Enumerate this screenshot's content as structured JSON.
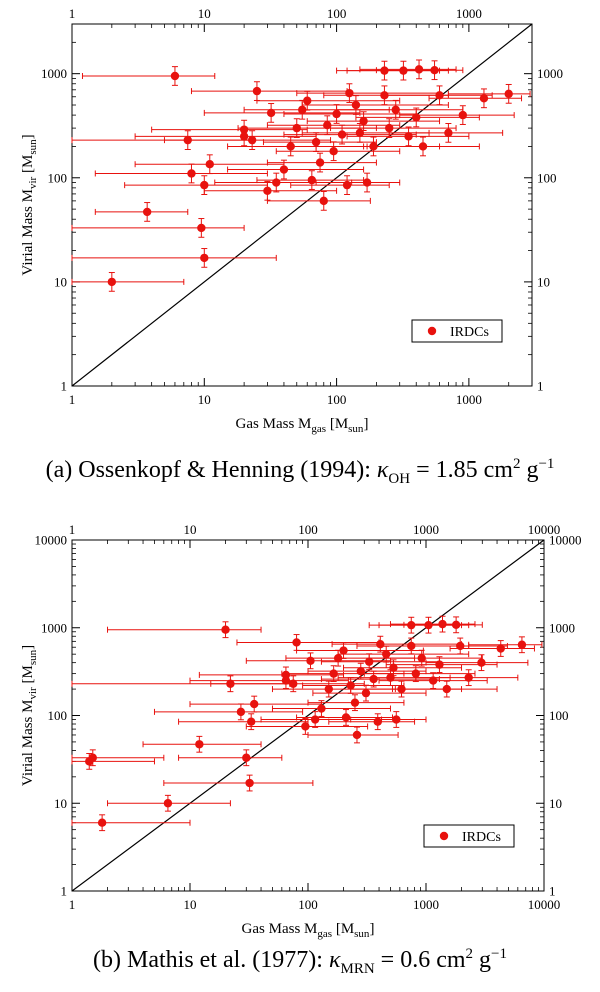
{
  "chart_data": [
    {
      "type": "scatter",
      "xscale": "log",
      "yscale": "log",
      "xlim": [
        1,
        3000
      ],
      "ylim": [
        1,
        3000
      ],
      "x_ticks": [
        "1",
        "10",
        "100",
        "1000"
      ],
      "y_ticks": [
        "1",
        "10",
        "100",
        "1000"
      ],
      "xlabel": "Gas Mass M",
      "xlabel_sub": "gas",
      "xlabel_unit": "sun",
      "ylabel": "Virial Mass M",
      "ylabel_sub": "vir",
      "ylabel_unit": "sun",
      "legend": "IRDCs",
      "legend_position": "bottom-right",
      "marker_color": "#e8120e",
      "reference_line": "y = x",
      "caption": {
        "prefix": "(a)",
        "text": "Ossenkopf & Henning (1994): ",
        "kappa": "κ",
        "kappa_sub": "OH",
        "value": " = 1.85 cm",
        "sup1": "2",
        "unit": " g",
        "sup2": "−1"
      },
      "points": [
        {
          "x": 2.0,
          "y": 10,
          "xlo": 1.0,
          "xhi": 7
        },
        {
          "x": 3.7,
          "y": 47,
          "xlo": 1.5,
          "xhi": 7.5
        },
        {
          "x": 9.5,
          "y": 33,
          "xlo": 1.0,
          "xhi": 20
        },
        {
          "x": 10,
          "y": 17,
          "xlo": 1.0,
          "xhi": 35
        },
        {
          "x": 6,
          "y": 950,
          "xlo": 1.2,
          "xhi": 12
        },
        {
          "x": 7.5,
          "y": 230,
          "xlo": 1.0,
          "xhi": 22
        },
        {
          "x": 8,
          "y": 110,
          "xlo": 1.5,
          "xhi": 30
        },
        {
          "x": 10,
          "y": 85,
          "xlo": 2.5,
          "xhi": 30
        },
        {
          "x": 11,
          "y": 135,
          "xlo": 3.0,
          "xhi": 40
        },
        {
          "x": 20,
          "y": 290,
          "xlo": 4.0,
          "xhi": 60
        },
        {
          "x": 20,
          "y": 250,
          "xlo": 3.0,
          "xhi": 70
        },
        {
          "x": 23,
          "y": 230,
          "xlo": 5,
          "xhi": 90
        },
        {
          "x": 25,
          "y": 680,
          "xlo": 8,
          "xhi": 120
        },
        {
          "x": 30,
          "y": 75,
          "xlo": 10,
          "xhi": 100
        },
        {
          "x": 32,
          "y": 420,
          "xlo": 10,
          "xhi": 150
        },
        {
          "x": 35,
          "y": 90,
          "xlo": 12,
          "xhi": 130
        },
        {
          "x": 40,
          "y": 120,
          "xlo": 15,
          "xhi": 160
        },
        {
          "x": 45,
          "y": 200,
          "xlo": 15,
          "xhi": 170
        },
        {
          "x": 50,
          "y": 300,
          "xlo": 18,
          "xhi": 200
        },
        {
          "x": 55,
          "y": 450,
          "xlo": 20,
          "xhi": 250
        },
        {
          "x": 60,
          "y": 550,
          "xlo": 25,
          "xhi": 300
        },
        {
          "x": 65,
          "y": 95,
          "xlo": 25,
          "xhi": 160
        },
        {
          "x": 70,
          "y": 220,
          "xlo": 28,
          "xhi": 200
        },
        {
          "x": 75,
          "y": 140,
          "xlo": 30,
          "xhi": 200
        },
        {
          "x": 80,
          "y": 60,
          "xlo": 30,
          "xhi": 180
        },
        {
          "x": 85,
          "y": 320,
          "xlo": 30,
          "xhi": 300
        },
        {
          "x": 95,
          "y": 180,
          "xlo": 35,
          "xhi": 300
        },
        {
          "x": 100,
          "y": 410,
          "xlo": 40,
          "xhi": 400
        },
        {
          "x": 110,
          "y": 260,
          "xlo": 40,
          "xhi": 400
        },
        {
          "x": 120,
          "y": 85,
          "xlo": 45,
          "xhi": 250
        },
        {
          "x": 125,
          "y": 650,
          "xlo": 50,
          "xhi": 600
        },
        {
          "x": 140,
          "y": 500,
          "xlo": 55,
          "xhi": 700
        },
        {
          "x": 150,
          "y": 270,
          "xlo": 55,
          "xhi": 500
        },
        {
          "x": 160,
          "y": 350,
          "xlo": 60,
          "xhi": 600
        },
        {
          "x": 170,
          "y": 90,
          "xlo": 70,
          "xhi": 300
        },
        {
          "x": 190,
          "y": 200,
          "xlo": 70,
          "xhi": 600
        },
        {
          "x": 230,
          "y": 1070,
          "xlo": 100,
          "xhi": 600
        },
        {
          "x": 230,
          "y": 620,
          "xlo": 80,
          "xhi": 700
        },
        {
          "x": 250,
          "y": 300,
          "xlo": 90,
          "xhi": 800
        },
        {
          "x": 280,
          "y": 450,
          "xlo": 100,
          "xhi": 900
        },
        {
          "x": 320,
          "y": 1070,
          "xlo": 120,
          "xhi": 700
        },
        {
          "x": 350,
          "y": 250,
          "xlo": 120,
          "xhi": 1000
        },
        {
          "x": 400,
          "y": 380,
          "xlo": 140,
          "xhi": 1200
        },
        {
          "x": 420,
          "y": 1100,
          "xlo": 150,
          "xhi": 800
        },
        {
          "x": 450,
          "y": 200,
          "xlo": 160,
          "xhi": 1200
        },
        {
          "x": 550,
          "y": 1080,
          "xlo": 200,
          "xhi": 900
        },
        {
          "x": 600,
          "y": 620,
          "xlo": 220,
          "xhi": 1500
        },
        {
          "x": 700,
          "y": 270,
          "xlo": 250,
          "xhi": 1800
        },
        {
          "x": 900,
          "y": 400,
          "xlo": 300,
          "xhi": 2200
        },
        {
          "x": 1300,
          "y": 580,
          "xlo": 500,
          "xhi": 2500
        },
        {
          "x": 2000,
          "y": 640,
          "xlo": 700,
          "xhi": 2900
        }
      ]
    },
    {
      "type": "scatter",
      "xscale": "log",
      "yscale": "log",
      "xlim": [
        1,
        10000
      ],
      "ylim": [
        1,
        10000
      ],
      "x_ticks": [
        "1",
        "10",
        "100",
        "1000",
        "10000"
      ],
      "y_ticks": [
        "1",
        "10",
        "100",
        "1000",
        "10000"
      ],
      "xlabel": "Gas Mass M",
      "xlabel_sub": "gas",
      "xlabel_unit": "sun",
      "ylabel": "Virial Mass M",
      "ylabel_sub": "vir",
      "ylabel_unit": "sun",
      "legend": "IRDCs",
      "legend_position": "bottom-right",
      "marker_color": "#e8120e",
      "reference_line": "y = x",
      "caption": {
        "prefix": "(b)",
        "text": "Mathis et al. (1977): ",
        "kappa": "κ",
        "kappa_sub": "MRN",
        "value": " = 0.6 cm",
        "sup1": "2",
        "unit": " g",
        "sup2": "−1"
      },
      "points": [
        {
          "x": 1.8,
          "y": 6,
          "xlo": 1.0,
          "xhi": 10
        },
        {
          "x": 6.5,
          "y": 10,
          "xlo": 2,
          "xhi": 22
        },
        {
          "x": 1.5,
          "y": 33,
          "xlo": 1.0,
          "xhi": 6
        },
        {
          "x": 1.4,
          "y": 30,
          "xlo": 1.0,
          "xhi": 5
        },
        {
          "x": 12,
          "y": 47,
          "xlo": 4,
          "xhi": 40
        },
        {
          "x": 30,
          "y": 33,
          "xlo": 8,
          "xhi": 60
        },
        {
          "x": 32,
          "y": 17,
          "xlo": 6,
          "xhi": 110
        },
        {
          "x": 20,
          "y": 950,
          "xlo": 2,
          "xhi": 40
        },
        {
          "x": 22,
          "y": 230,
          "xlo": 1.0,
          "xhi": 70
        },
        {
          "x": 27,
          "y": 110,
          "xlo": 5,
          "xhi": 90
        },
        {
          "x": 33,
          "y": 85,
          "xlo": 8,
          "xhi": 100
        },
        {
          "x": 35,
          "y": 135,
          "xlo": 10,
          "xhi": 130
        },
        {
          "x": 65,
          "y": 290,
          "xlo": 12,
          "xhi": 200
        },
        {
          "x": 65,
          "y": 250,
          "xlo": 10,
          "xhi": 220
        },
        {
          "x": 75,
          "y": 230,
          "xlo": 15,
          "xhi": 300
        },
        {
          "x": 80,
          "y": 680,
          "xlo": 25,
          "xhi": 400
        },
        {
          "x": 95,
          "y": 75,
          "xlo": 30,
          "xhi": 320
        },
        {
          "x": 105,
          "y": 420,
          "xlo": 30,
          "xhi": 500
        },
        {
          "x": 115,
          "y": 90,
          "xlo": 40,
          "xhi": 420
        },
        {
          "x": 130,
          "y": 120,
          "xlo": 50,
          "xhi": 500
        },
        {
          "x": 150,
          "y": 200,
          "xlo": 50,
          "xhi": 550
        },
        {
          "x": 165,
          "y": 300,
          "xlo": 60,
          "xhi": 650
        },
        {
          "x": 180,
          "y": 450,
          "xlo": 65,
          "xhi": 800
        },
        {
          "x": 200,
          "y": 550,
          "xlo": 80,
          "xhi": 950
        },
        {
          "x": 210,
          "y": 95,
          "xlo": 80,
          "xhi": 520
        },
        {
          "x": 230,
          "y": 220,
          "xlo": 90,
          "xhi": 650
        },
        {
          "x": 250,
          "y": 140,
          "xlo": 100,
          "xhi": 650
        },
        {
          "x": 260,
          "y": 60,
          "xlo": 100,
          "xhi": 580
        },
        {
          "x": 280,
          "y": 320,
          "xlo": 100,
          "xhi": 1000
        },
        {
          "x": 310,
          "y": 180,
          "xlo": 110,
          "xhi": 1000
        },
        {
          "x": 330,
          "y": 410,
          "xlo": 130,
          "xhi": 1300
        },
        {
          "x": 360,
          "y": 260,
          "xlo": 130,
          "xhi": 1300
        },
        {
          "x": 390,
          "y": 85,
          "xlo": 150,
          "xhi": 800
        },
        {
          "x": 410,
          "y": 650,
          "xlo": 160,
          "xhi": 2000
        },
        {
          "x": 460,
          "y": 500,
          "xlo": 180,
          "xhi": 2300
        },
        {
          "x": 500,
          "y": 270,
          "xlo": 180,
          "xhi": 1600
        },
        {
          "x": 530,
          "y": 350,
          "xlo": 200,
          "xhi": 2000
        },
        {
          "x": 560,
          "y": 90,
          "xlo": 230,
          "xhi": 1000
        },
        {
          "x": 620,
          "y": 200,
          "xlo": 230,
          "xhi": 2000
        },
        {
          "x": 750,
          "y": 1070,
          "xlo": 330,
          "xhi": 2000
        },
        {
          "x": 750,
          "y": 620,
          "xlo": 260,
          "xhi": 2300
        },
        {
          "x": 820,
          "y": 300,
          "xlo": 300,
          "xhi": 2600
        },
        {
          "x": 920,
          "y": 450,
          "xlo": 330,
          "xhi": 3000
        },
        {
          "x": 1050,
          "y": 1070,
          "xlo": 400,
          "xhi": 2300
        },
        {
          "x": 1150,
          "y": 250,
          "xlo": 400,
          "xhi": 3300
        },
        {
          "x": 1300,
          "y": 380,
          "xlo": 460,
          "xhi": 4000
        },
        {
          "x": 1380,
          "y": 1100,
          "xlo": 500,
          "xhi": 2600
        },
        {
          "x": 1500,
          "y": 200,
          "xlo": 520,
          "xhi": 4000
        },
        {
          "x": 1800,
          "y": 1080,
          "xlo": 650,
          "xhi": 3000
        },
        {
          "x": 1950,
          "y": 620,
          "xlo": 720,
          "xhi": 4900
        },
        {
          "x": 2300,
          "y": 270,
          "xlo": 820,
          "xhi": 6000
        },
        {
          "x": 2950,
          "y": 400,
          "xlo": 1000,
          "xhi": 7300
        },
        {
          "x": 4300,
          "y": 580,
          "xlo": 1600,
          "xhi": 8300
        },
        {
          "x": 6500,
          "y": 640,
          "xlo": 2300,
          "xhi": 9600
        }
      ]
    }
  ]
}
